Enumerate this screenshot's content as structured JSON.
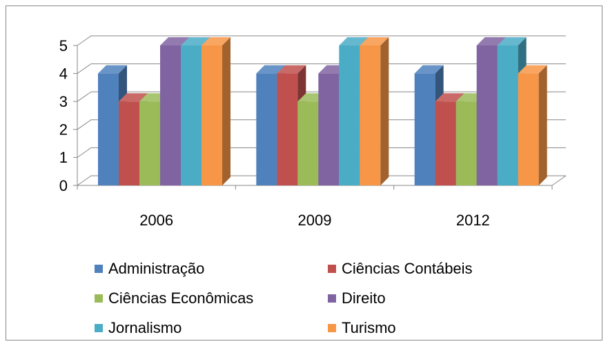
{
  "chart_data": {
    "type": "bar3d",
    "categories": [
      "2006",
      "2009",
      "2012"
    ],
    "series": [
      {
        "name": "Administração",
        "color": "#4f81bd",
        "values": [
          4,
          4,
          4
        ]
      },
      {
        "name": "Ciências Contábeis",
        "color": "#c0504d",
        "values": [
          3,
          4,
          3
        ]
      },
      {
        "name": "Ciências Econômicas",
        "color": "#9bbb59",
        "values": [
          3,
          3,
          3
        ]
      },
      {
        "name": "Direito",
        "color": "#8064a2",
        "values": [
          5,
          4,
          5
        ]
      },
      {
        "name": "Jornalismo",
        "color": "#4bacc6",
        "values": [
          5,
          5,
          5
        ]
      },
      {
        "name": "Turismo",
        "color": "#f79646",
        "values": [
          5,
          5,
          4
        ]
      }
    ],
    "ylim": [
      0,
      5
    ],
    "yticks": [
      0,
      1,
      2,
      3,
      4,
      5
    ],
    "grid": true
  }
}
